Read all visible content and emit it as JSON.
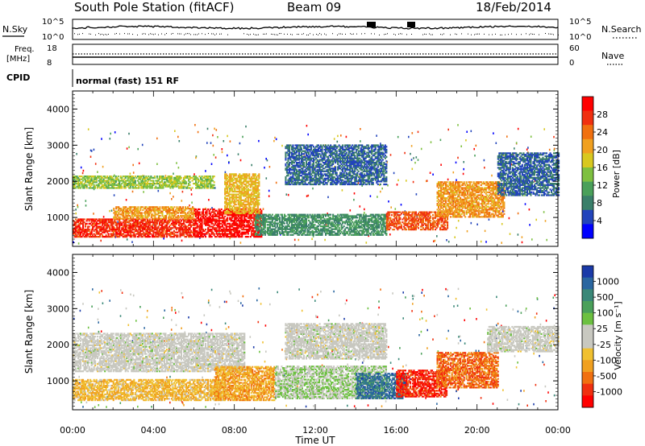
{
  "header": {
    "station": "South Pole Station (fitACF)",
    "beam": "Beam 09",
    "date": "18/Feb/2014"
  },
  "top_panels": {
    "nsky_label": "N.Sky",
    "nsearch_label": "N.Search",
    "freq_label_1": "Freq.",
    "freq_label_2": "[MHz]",
    "nave_label": "Nave",
    "cpid_label": "CPID",
    "cpid_value": "normal (fast) 151 RF",
    "noise_ticks": [
      "10^5",
      "10^0"
    ],
    "freq_ticks": [
      "18",
      "8"
    ],
    "nave_ticks": [
      "60",
      "0"
    ]
  },
  "colorbars": {
    "power": {
      "label": "Power [dB]",
      "ticks": [
        "4",
        "8",
        "12",
        "16",
        "20",
        "24",
        "28"
      ],
      "colors": [
        "#0000ff",
        "#2244bb",
        "#3a7f6a",
        "#4aa05a",
        "#7ec040",
        "#d8c820",
        "#f0a020",
        "#f07010",
        "#f03010",
        "#ff0000"
      ]
    },
    "velocity": {
      "label": "Velocity [m s⁻¹]",
      "ticks": [
        "1000",
        "500",
        "100",
        "25",
        "-25",
        "-100",
        "-500",
        "-1000"
      ],
      "colors": [
        "#1a3aa8",
        "#2a66a0",
        "#3a8878",
        "#4aa05a",
        "#6cc040",
        "#c8c8c0",
        "#c8c8c0",
        "#f0c030",
        "#f0a020",
        "#f07010",
        "#f03010",
        "#ff0000"
      ]
    }
  },
  "chart_data": [
    {
      "type": "heatmap",
      "title": "Power",
      "xlabel": "Time UT",
      "ylabel": "Slant Range [km]",
      "x_ticks": [
        "00:00",
        "04:00",
        "08:00",
        "12:00",
        "16:00",
        "20:00",
        "00:00"
      ],
      "y_ticks": [
        "1000",
        "2000",
        "3000",
        "4000"
      ],
      "xlim": [
        0,
        24
      ],
      "ylim": [
        200,
        4500
      ],
      "zlabel": "Power [dB]",
      "zlim": [
        0,
        30
      ],
      "bands": [
        {
          "t0": 0.0,
          "t1": 6.0,
          "r_lo": 450,
          "r_hi": 950,
          "z": 26
        },
        {
          "t0": 2.0,
          "t1": 6.0,
          "r_lo": 950,
          "r_hi": 1300,
          "z": 20
        },
        {
          "t0": 0.0,
          "t1": 7.0,
          "r_lo": 1800,
          "r_hi": 2150,
          "z": 14
        },
        {
          "t0": 6.0,
          "t1": 9.3,
          "r_lo": 450,
          "r_hi": 1250,
          "z": 28
        },
        {
          "t0": 7.5,
          "t1": 9.2,
          "r_lo": 1100,
          "r_hi": 2200,
          "z": 18
        },
        {
          "t0": 9.0,
          "t1": 15.5,
          "r_lo": 500,
          "r_hi": 1100,
          "z": 9
        },
        {
          "t0": 10.5,
          "t1": 15.5,
          "r_lo": 1900,
          "r_hi": 3000,
          "z": 6
        },
        {
          "t0": 15.5,
          "t1": 18.5,
          "r_lo": 650,
          "r_hi": 1150,
          "z": 24
        },
        {
          "t0": 18.0,
          "t1": 21.3,
          "r_lo": 1000,
          "r_hi": 2000,
          "z": 20
        },
        {
          "t0": 21.0,
          "t1": 24.0,
          "r_lo": 1600,
          "r_hi": 2800,
          "z": 6
        }
      ]
    },
    {
      "type": "heatmap",
      "title": "Velocity",
      "xlabel": "Time UT",
      "ylabel": "Slant Range [km]",
      "x_ticks": [
        "00:00",
        "04:00",
        "08:00",
        "12:00",
        "16:00",
        "20:00",
        "00:00"
      ],
      "y_ticks": [
        "1000",
        "2000",
        "3000",
        "4000"
      ],
      "xlim": [
        0,
        24
      ],
      "ylim": [
        200,
        4500
      ],
      "zlabel": "Velocity [m s-1]",
      "zlim": [
        -1000,
        1000
      ],
      "bands": [
        {
          "t0": 0.0,
          "t1": 7.5,
          "r_lo": 450,
          "r_hi": 1050,
          "z": -300
        },
        {
          "t0": 0.0,
          "t1": 8.5,
          "r_lo": 1250,
          "r_hi": 2300,
          "z": 0
        },
        {
          "t0": 7.0,
          "t1": 10.0,
          "r_lo": 450,
          "r_hi": 1400,
          "z": -400
        },
        {
          "t0": 10.0,
          "t1": 15.5,
          "r_lo": 500,
          "r_hi": 1400,
          "z": 150
        },
        {
          "t0": 10.5,
          "t1": 15.5,
          "r_lo": 1600,
          "r_hi": 2600,
          "z": 0
        },
        {
          "t0": 14.0,
          "t1": 16.5,
          "r_lo": 500,
          "r_hi": 1200,
          "z": 700
        },
        {
          "t0": 16.0,
          "t1": 18.5,
          "r_lo": 550,
          "r_hi": 1300,
          "z": -800
        },
        {
          "t0": 18.0,
          "t1": 21.0,
          "r_lo": 800,
          "r_hi": 1800,
          "z": -600
        },
        {
          "t0": 20.5,
          "t1": 24.0,
          "r_lo": 1800,
          "r_hi": 2500,
          "z": 0
        }
      ]
    }
  ]
}
